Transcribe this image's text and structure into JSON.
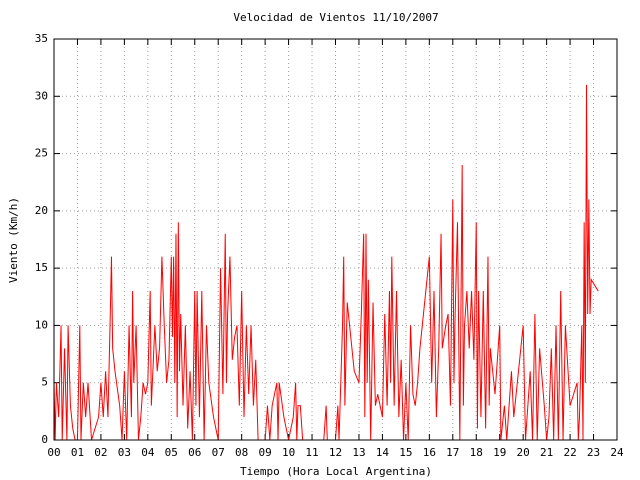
{
  "chart_data": {
    "type": "line",
    "title": "Velocidad de Vientos 11/10/2007",
    "x_label": "Tiempo (Hora Local Argentina)",
    "y_label": "Viento (Km/h)",
    "color": "#ff0000",
    "grid": true,
    "xlim": [
      0,
      24
    ],
    "ylim": [
      0,
      35
    ],
    "xticks": [
      {
        "value": 0,
        "label": "00"
      },
      {
        "value": 1,
        "label": "01"
      },
      {
        "value": 2,
        "label": "02"
      },
      {
        "value": 3,
        "label": "03"
      },
      {
        "value": 4,
        "label": "04"
      },
      {
        "value": 5,
        "label": "05"
      },
      {
        "value": 6,
        "label": "06"
      },
      {
        "value": 7,
        "label": "07"
      },
      {
        "value": 8,
        "label": "08"
      },
      {
        "value": 9,
        "label": "09"
      },
      10,
      11,
      12,
      13,
      14,
      15,
      16,
      17,
      18,
      19,
      20,
      21,
      22,
      23,
      24
    ],
    "yticks": [
      0,
      5,
      10,
      15,
      20,
      25,
      30,
      35
    ],
    "x": [
      0.0,
      0.05,
      0.1,
      0.2,
      0.3,
      0.35,
      0.45,
      0.55,
      0.6,
      0.7,
      0.8,
      0.9,
      1.0,
      1.1,
      1.15,
      1.25,
      1.35,
      1.45,
      1.6,
      1.75,
      1.9,
      2.0,
      2.1,
      2.2,
      2.3,
      2.4,
      2.45,
      2.5,
      2.6,
      2.8,
      2.9,
      3.0,
      3.1,
      3.2,
      3.3,
      3.35,
      3.4,
      3.5,
      3.6,
      3.7,
      3.8,
      3.9,
      4.0,
      4.1,
      4.15,
      4.3,
      4.4,
      4.5,
      4.6,
      4.7,
      4.8,
      4.9,
      5.0,
      5.05,
      5.1,
      5.15,
      5.2,
      5.25,
      5.3,
      5.35,
      5.4,
      5.5,
      5.6,
      5.7,
      5.8,
      5.9,
      6.0,
      6.05,
      6.1,
      6.2,
      6.3,
      6.4,
      6.5,
      6.6,
      6.8,
      7.0,
      7.1,
      7.2,
      7.3,
      7.35,
      7.4,
      7.5,
      7.6,
      7.7,
      7.8,
      7.9,
      8.0,
      8.1,
      8.2,
      8.3,
      8.4,
      8.5,
      8.6,
      8.7,
      9.0,
      9.1,
      9.2,
      9.3,
      9.5,
      9.55,
      9.6,
      9.8,
      10.0,
      10.2,
      10.3,
      10.35,
      10.4,
      10.5,
      10.6,
      11.0,
      11.5,
      11.6,
      11.65,
      12.0,
      12.1,
      12.15,
      12.3,
      12.35,
      12.4,
      12.5,
      12.6,
      12.8,
      13.0,
      13.1,
      13.2,
      13.25,
      13.3,
      13.35,
      13.4,
      13.5,
      13.6,
      13.7,
      13.8,
      14.0,
      14.1,
      14.2,
      14.3,
      14.35,
      14.4,
      14.5,
      14.6,
      14.7,
      14.8,
      14.9,
      15.0,
      15.1,
      15.2,
      15.3,
      15.4,
      15.5,
      15.6,
      16.0,
      16.1,
      16.2,
      16.3,
      16.4,
      16.5,
      16.55,
      16.7,
      16.8,
      16.9,
      17.0,
      17.05,
      17.1,
      17.2,
      17.3,
      17.4,
      17.45,
      17.5,
      17.6,
      17.7,
      17.8,
      17.9,
      18.0,
      18.05,
      18.1,
      18.2,
      18.3,
      18.4,
      18.5,
      18.55,
      18.6,
      18.8,
      19.0,
      19.05,
      19.2,
      19.3,
      19.5,
      19.6,
      19.8,
      20.0,
      20.1,
      20.3,
      20.4,
      20.5,
      20.6,
      20.7,
      20.9,
      21.0,
      21.1,
      21.2,
      21.3,
      21.4,
      21.5,
      21.6,
      21.7,
      21.8,
      22.0,
      22.3,
      22.35,
      22.4,
      22.5,
      22.55,
      22.6,
      22.65,
      22.7,
      22.75,
      22.8,
      22.85,
      22.9,
      23.2
    ],
    "values": [
      5,
      0,
      5,
      2,
      10,
      0,
      8,
      0,
      10,
      3,
      1,
      0,
      0,
      10,
      0,
      5,
      2,
      5,
      0,
      1,
      2,
      5,
      2,
      6,
      2,
      11,
      16,
      8,
      6,
      3,
      0,
      6,
      0,
      10,
      2,
      13,
      5,
      10,
      0,
      2,
      5,
      4,
      5,
      13,
      3,
      10,
      6,
      8,
      16,
      10,
      5,
      7,
      16,
      9,
      16,
      5,
      18,
      2,
      19,
      6,
      11,
      3,
      10,
      1,
      6,
      0,
      13,
      3,
      13,
      2,
      13,
      0,
      10,
      5,
      2,
      0,
      15,
      4,
      18,
      5,
      11,
      16,
      7,
      9,
      10,
      3,
      13,
      2,
      10,
      4,
      10,
      3,
      7,
      0,
      0,
      3,
      0,
      3,
      5,
      0,
      5,
      2,
      0,
      2,
      5,
      0,
      3,
      3,
      0,
      0,
      0,
      3,
      0,
      0,
      3,
      0,
      10,
      16,
      3,
      12,
      10,
      6,
      5,
      11,
      18,
      2,
      18,
      5,
      14,
      0,
      12,
      3,
      4,
      2,
      11,
      3,
      13,
      5,
      16,
      3,
      13,
      2,
      7,
      0,
      5,
      0,
      10,
      4,
      3,
      5,
      8,
      16,
      5,
      13,
      2,
      8,
      18,
      8,
      10,
      11,
      3,
      21,
      5,
      11,
      19,
      0,
      24,
      3,
      10,
      13,
      8,
      13,
      7,
      19,
      1,
      13,
      2,
      13,
      1,
      16,
      3,
      8,
      4,
      10,
      0,
      3,
      0,
      6,
      2,
      6,
      10,
      0,
      6,
      0,
      11,
      0,
      8,
      3,
      0,
      2,
      8,
      0,
      10,
      0,
      13,
      0,
      10,
      3,
      5,
      0,
      2,
      10,
      0,
      19,
      5,
      31,
      11,
      21,
      11,
      14,
      13
    ]
  }
}
